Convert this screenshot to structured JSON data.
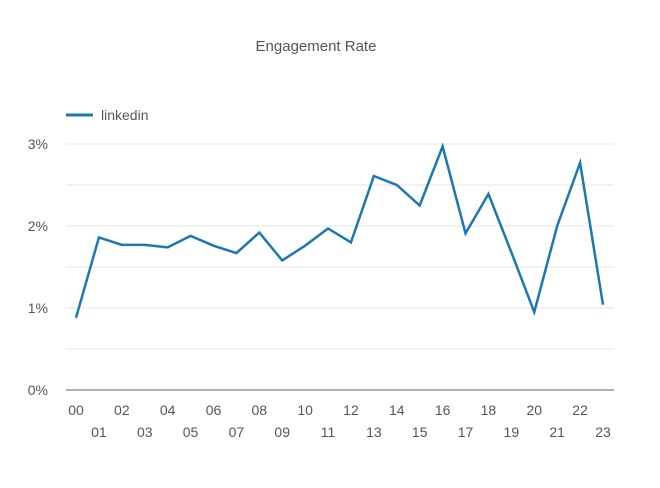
{
  "chart_data": {
    "type": "line",
    "title": "Engagement Rate",
    "xlabel": "",
    "ylabel": "",
    "x": [
      "00",
      "01",
      "02",
      "03",
      "04",
      "05",
      "06",
      "07",
      "08",
      "09",
      "10",
      "11",
      "12",
      "13",
      "14",
      "15",
      "16",
      "17",
      "18",
      "19",
      "20",
      "21",
      "22",
      "23"
    ],
    "series": [
      {
        "name": "linkedin",
        "color": "#1a7ab0",
        "values": [
          0.88,
          1.86,
          1.77,
          1.77,
          1.74,
          1.88,
          1.76,
          1.67,
          1.92,
          1.58,
          1.76,
          1.97,
          1.8,
          2.61,
          2.5,
          2.25,
          2.97,
          1.91,
          2.39,
          1.68,
          0.95,
          2.0,
          2.77,
          1.04
        ]
      }
    ],
    "ylim": [
      0,
      3
    ],
    "yticks": [
      {
        "value": 0,
        "label": "0%"
      },
      {
        "value": 1,
        "label": "1%"
      },
      {
        "value": 2,
        "label": "2%"
      },
      {
        "value": 3,
        "label": "3%"
      }
    ],
    "minor_gridlines": [
      0.5,
      1.5,
      2.5
    ],
    "grid": true,
    "legend": "top-left"
  }
}
